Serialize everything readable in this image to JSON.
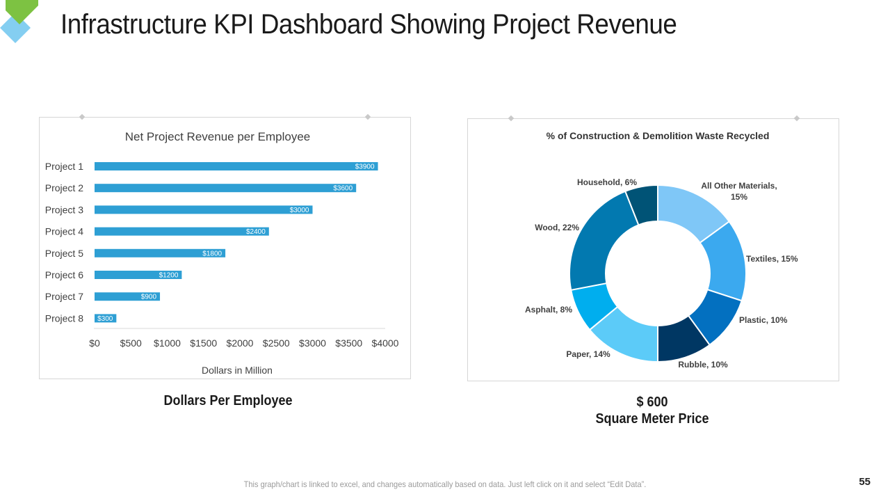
{
  "title": "Infrastructure KPI Dashboard Showing Project Revenue",
  "colors": {
    "bar": "#2E9FD4",
    "logo_green": "#7DC242",
    "logo_blue": "#6EC6EE"
  },
  "left_caption": "Dollars Per Employee",
  "right_caption": {
    "value": "$ 600",
    "label": "Square Meter Price"
  },
  "footnote": "This graph/chart is linked to excel, and changes automatically based on data. Just left click on it and select “Edit Data”.",
  "page_number": "55",
  "chart_data": [
    {
      "type": "bar",
      "orientation": "horizontal",
      "title": "Net Project Revenue per Employee",
      "xlabel": "Dollars in Million",
      "ylabel": "",
      "categories": [
        "Project 1",
        "Project 2",
        "Project 3",
        "Project 4",
        "Project 5",
        "Project 6",
        "Project 7",
        "Project 8"
      ],
      "values": [
        3900,
        3600,
        3000,
        2400,
        1800,
        1200,
        900,
        300
      ],
      "data_labels": [
        "$3900",
        "$3600",
        "$3000",
        "$2400",
        "$1800",
        "$1200",
        "$900",
        "$300"
      ],
      "xlim": [
        0,
        4000
      ],
      "x_ticks": [
        0,
        500,
        1000,
        1500,
        2000,
        2500,
        3000,
        3500,
        4000
      ],
      "x_tick_labels": [
        "$0",
        "$500",
        "$1000",
        "$1500",
        "$2000",
        "$2500",
        "$3000",
        "$3500",
        "$4000"
      ],
      "grid": false
    },
    {
      "type": "pie",
      "variant": "donut",
      "title": "% of Construction & Demolition Waste Recycled",
      "slices": [
        {
          "label": "All Other Materials,",
          "label2": "15%",
          "value": 15,
          "color": "#7FC7F7"
        },
        {
          "label": "Textiles, 15%",
          "value": 15,
          "color": "#3BA9EF"
        },
        {
          "label": "Plastic, 10%",
          "value": 10,
          "color": "#0370C0"
        },
        {
          "label": "Rubble, 10%",
          "value": 10,
          "color": "#003763"
        },
        {
          "label": "Paper, 14%",
          "value": 14,
          "color": "#5CCBF8"
        },
        {
          "label": "Asphalt, 8%",
          "value": 8,
          "color": "#00AEEE"
        },
        {
          "label": "Wood, 22%",
          "value": 22,
          "color": "#0279B0"
        },
        {
          "label": "Household, 6%",
          "value": 6,
          "color": "#005376"
        }
      ]
    }
  ]
}
